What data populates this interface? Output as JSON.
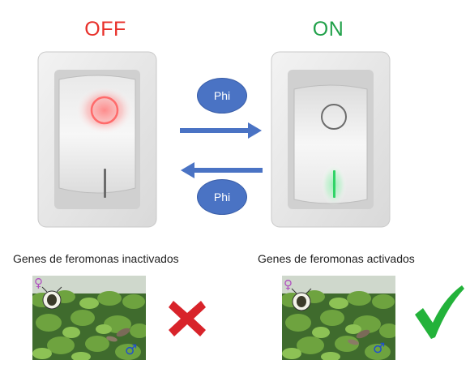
{
  "labels": {
    "off": "OFF",
    "on": "ON",
    "phi_top": "Phi",
    "phi_bottom": "Phi"
  },
  "captions": {
    "inactive": "Genes de feromonas inactivados",
    "active": "Genes de feromonas activados"
  },
  "symbols": {
    "female": "♀",
    "male": "♂"
  },
  "colors": {
    "off_text": "#e8302a",
    "on_text": "#21a14a",
    "arrow": "#4a73c4",
    "phi_badge": "#4a73c4",
    "cross": "#d8232a",
    "check": "#23b23a",
    "off_glow": "#ff5a5a",
    "on_glow": "#3fdc70",
    "female_symbol": "#b04fc0",
    "male_symbol": "#1f4fd0"
  },
  "icons": {
    "off_switch": "rocker-switch-off-icon",
    "on_switch": "rocker-switch-on-icon",
    "right_arrow": "arrow-right-icon",
    "left_arrow": "arrow-left-icon",
    "cross": "red-cross-icon",
    "check": "green-check-icon"
  }
}
